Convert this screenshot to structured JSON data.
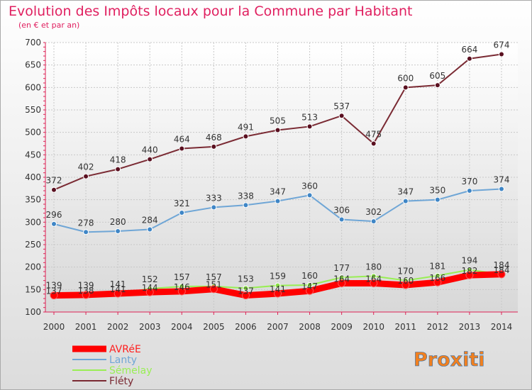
{
  "chart_data": {
    "type": "line",
    "title": "Evolution des Impôts locaux pour la Commune par Habitant",
    "subtitle": "(en € et par an)",
    "xlabel": "",
    "ylabel": "",
    "ylim": [
      100,
      700
    ],
    "yticks": [
      100,
      150,
      200,
      250,
      300,
      350,
      400,
      450,
      500,
      550,
      600,
      650,
      700
    ],
    "categories": [
      "2000",
      "2001",
      "2002",
      "2003",
      "2004",
      "2005",
      "2006",
      "2007",
      "2008",
      "2009",
      "2010",
      "2011",
      "2012",
      "2013",
      "2014"
    ],
    "series": [
      {
        "name": "AVRéE",
        "color": "#ff0000",
        "marker": "#ff0000",
        "values": [
          137,
          138,
          141,
          144,
          146,
          151,
          137,
          141,
          147,
          164,
          164,
          160,
          166,
          182,
          184
        ]
      },
      {
        "name": "Lanty",
        "color": "#6fa6d6",
        "marker": "#3f86c6",
        "values": [
          296,
          278,
          280,
          284,
          321,
          333,
          338,
          347,
          360,
          306,
          302,
          347,
          350,
          370,
          374
        ]
      },
      {
        "name": "Sémelay",
        "color": "#99ee55",
        "marker": "#88dd44",
        "values": [
          139,
          139,
          141,
          152,
          157,
          157,
          153,
          159,
          160,
          177,
          180,
          170,
          181,
          194,
          184
        ]
      },
      {
        "name": "Fléty",
        "color": "#7a2a33",
        "marker": "#5a1020",
        "values": [
          372,
          402,
          418,
          440,
          464,
          468,
          491,
          505,
          513,
          537,
          475,
          600,
          605,
          664,
          674
        ]
      }
    ],
    "legend_position": "bottom-left",
    "grid": true
  },
  "logo": {
    "text": "Proxiti"
  },
  "colors": {
    "title": "#e02060",
    "axis_text": "#333333"
  }
}
